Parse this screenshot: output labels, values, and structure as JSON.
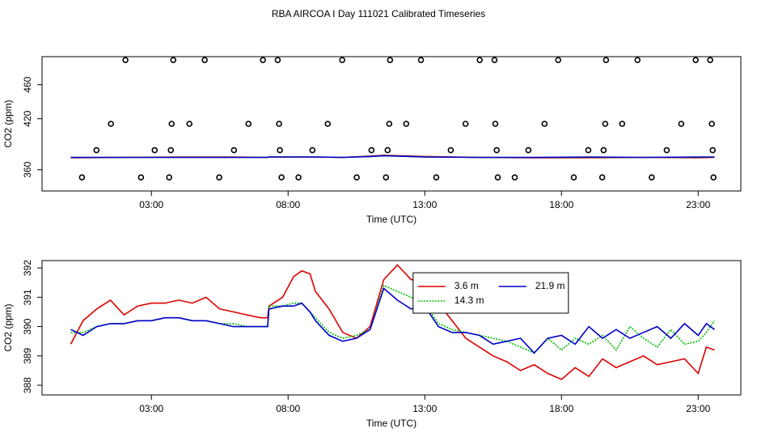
{
  "title": "RBA AIRCOA I  Day 111021  Calibrated Timeseries",
  "chart_data": [
    {
      "type": "line",
      "xlabel": "Time (UTC)",
      "ylabel": "CO2 (ppm)",
      "xlim": [
        -1,
        24.56
      ],
      "ylim": [
        335,
        493
      ],
      "xticks": [
        {
          "value": 3,
          "label": "03:00"
        },
        {
          "value": 8,
          "label": "08:00"
        },
        {
          "value": 13,
          "label": "13:00"
        },
        {
          "value": 18,
          "label": "18:00"
        },
        {
          "value": 23,
          "label": "23:00"
        }
      ],
      "yticks": [
        360,
        420,
        460
      ],
      "series": [
        {
          "style": "points",
          "color": "#000000",
          "x": [
            2.05,
            3.8,
            4.95,
            7.08,
            7.62,
            9.98,
            11.73,
            12.86,
            15.01,
            15.55,
            17.88,
            19.63,
            20.78,
            22.91,
            23.44,
            1.52,
            3.74,
            4.39,
            6.55,
            7.67,
            9.45,
            11.7,
            12.32,
            14.49,
            15.58,
            17.38,
            19.6,
            20.22,
            22.38,
            23.5,
            0.99,
            3.12,
            3.71,
            6.02,
            7.7,
            8.89,
            11.05,
            11.64,
            13.95,
            15.63,
            16.79,
            18.98,
            19.54,
            21.85,
            23.53,
            0.46,
            2.62,
            3.65,
            5.48,
            7.76,
            8.38,
            10.51,
            11.58,
            13.42,
            15.67,
            16.29,
            18.45,
            19.49,
            21.3,
            23.56
          ],
          "values": [
            489,
            489,
            489,
            489,
            489,
            489,
            489,
            489,
            489,
            489,
            489,
            489,
            489,
            489,
            489,
            414,
            414,
            414,
            414,
            414,
            414,
            414,
            414,
            414,
            414,
            414,
            414,
            414,
            414,
            414,
            383,
            383,
            383,
            383,
            383,
            383,
            383,
            383,
            383,
            383,
            383,
            383,
            383,
            383,
            383,
            351,
            351,
            351,
            351,
            351,
            351,
            351,
            351,
            351,
            351,
            351,
            351,
            351,
            351,
            351
          ]
        },
        {
          "style": "solid",
          "color": "#dd0000",
          "x": [
            0.05,
            2,
            4,
            6,
            7.25,
            7.3,
            9,
            10,
            11,
            11.5,
            12,
            13,
            15,
            17,
            19,
            21,
            23,
            23.6
          ],
          "values": [
            374,
            374.5,
            375,
            375,
            374.5,
            375,
            375,
            374.5,
            376,
            377,
            376.5,
            375.5,
            374.5,
            374,
            374,
            374.5,
            374,
            374.5
          ]
        },
        {
          "style": "dotted",
          "color": "#00bb00",
          "x": [
            0.05,
            2,
            4,
            6,
            7.25,
            7.3,
            9,
            10,
            11,
            11.5,
            12,
            13,
            15,
            17,
            19,
            21,
            23,
            23.6
          ],
          "values": [
            374.5,
            374.5,
            374.5,
            374.5,
            374.5,
            375,
            375,
            374.5,
            375.5,
            376.5,
            376,
            375,
            374.5,
            374.5,
            374.5,
            374.5,
            374.5,
            375
          ]
        },
        {
          "style": "solid",
          "color": "#0000cc",
          "x": [
            0.05,
            2,
            4,
            6,
            7.25,
            7.3,
            9,
            10,
            11,
            11.5,
            12,
            13,
            15,
            17,
            19,
            21,
            23,
            23.6
          ],
          "values": [
            374.5,
            374.5,
            374.5,
            374.5,
            374.5,
            375,
            375,
            374.5,
            375.5,
            376.5,
            376,
            375,
            374.5,
            374.5,
            375,
            374.5,
            375,
            375
          ]
        }
      ]
    },
    {
      "type": "line",
      "xlabel": "Time (UTC)",
      "ylabel": "CO2 (ppm)",
      "xlim": [
        -1,
        24.56
      ],
      "ylim": [
        387.67,
        392.25
      ],
      "xticks": [
        {
          "value": 3,
          "label": "03:00"
        },
        {
          "value": 8,
          "label": "08:00"
        },
        {
          "value": 13,
          "label": "13:00"
        },
        {
          "value": 18,
          "label": "18:00"
        },
        {
          "value": 23,
          "label": "23:00"
        }
      ],
      "yticks": [
        388,
        389,
        390,
        391,
        392
      ],
      "legend": "top",
      "series": [
        {
          "name": "3.6 m",
          "style": "solid",
          "color": "#dd0000",
          "x": [
            0.05,
            0.5,
            1,
            1.5,
            2,
            2.5,
            3,
            3.5,
            4,
            4.5,
            5,
            5.5,
            6,
            6.5,
            7,
            7.25,
            7.3,
            7.8,
            8.2,
            8.5,
            8.8,
            9,
            9.5,
            10,
            10.5,
            11,
            11.5,
            12,
            12.5,
            13,
            13.5,
            14,
            14.5,
            15,
            15.5,
            16,
            16.5,
            17,
            17.5,
            18,
            18.5,
            19,
            19.5,
            20,
            20.5,
            21,
            21.5,
            22,
            22.5,
            23,
            23.3,
            23.6
          ],
          "values": [
            389.4,
            390.2,
            390.6,
            390.9,
            390.4,
            390.7,
            390.8,
            390.8,
            390.9,
            390.8,
            391.0,
            390.6,
            390.5,
            390.4,
            390.3,
            390.3,
            390.7,
            391.0,
            391.7,
            391.9,
            391.8,
            391.2,
            390.6,
            389.8,
            389.6,
            390.0,
            391.6,
            392.1,
            391.6,
            391.6,
            390.8,
            390.2,
            389.6,
            389.3,
            389.0,
            388.8,
            388.5,
            388.7,
            388.4,
            388.2,
            388.6,
            388.3,
            388.9,
            388.6,
            388.8,
            389.0,
            388.7,
            388.8,
            388.9,
            388.4,
            389.3,
            389.2
          ]
        },
        {
          "name": "14.3 m",
          "style": "dotted",
          "color": "#00bb00",
          "x": [
            0.05,
            0.5,
            1,
            1.5,
            2,
            2.5,
            3,
            3.5,
            4,
            4.5,
            5,
            5.5,
            6,
            6.5,
            7,
            7.25,
            7.3,
            7.8,
            8.2,
            8.5,
            8.8,
            9,
            9.5,
            10,
            10.5,
            11,
            11.5,
            12,
            12.5,
            13,
            13.5,
            14,
            14.5,
            15,
            15.5,
            16,
            16.5,
            17,
            17.5,
            18,
            18.5,
            19,
            19.5,
            20,
            20.5,
            21,
            21.5,
            22,
            22.5,
            23,
            23.3,
            23.6
          ],
          "values": [
            389.8,
            389.8,
            390.0,
            390.1,
            390.1,
            390.2,
            390.2,
            390.3,
            390.3,
            390.2,
            390.2,
            390.1,
            390.1,
            390.0,
            390.0,
            390.0,
            390.7,
            390.7,
            390.8,
            390.8,
            390.5,
            390.3,
            389.8,
            389.6,
            389.7,
            389.9,
            391.4,
            391.2,
            391.0,
            390.8,
            390.1,
            389.9,
            389.8,
            389.7,
            389.6,
            389.5,
            389.3,
            389.1,
            389.6,
            389.2,
            389.6,
            389.4,
            389.7,
            389.2,
            390.0,
            389.6,
            389.3,
            389.9,
            389.4,
            389.5,
            389.8,
            390.2
          ]
        },
        {
          "name": "21.9 m",
          "style": "solid",
          "color": "#0000cc",
          "x": [
            0.05,
            0.5,
            1,
            1.5,
            2,
            2.5,
            3,
            3.5,
            4,
            4.5,
            5,
            5.5,
            6,
            6.5,
            7,
            7.25,
            7.3,
            7.8,
            8.2,
            8.5,
            8.8,
            9,
            9.5,
            10,
            10.5,
            11,
            11.5,
            12,
            12.5,
            13,
            13.5,
            14,
            14.5,
            15,
            15.5,
            16,
            16.5,
            17,
            17.5,
            18,
            18.5,
            19,
            19.5,
            20,
            20.5,
            21,
            21.5,
            22,
            22.5,
            23,
            23.3,
            23.6
          ],
          "values": [
            389.9,
            389.7,
            390.0,
            390.1,
            390.1,
            390.2,
            390.2,
            390.3,
            390.3,
            390.2,
            390.2,
            390.1,
            390.0,
            390.0,
            390.0,
            390.0,
            390.6,
            390.7,
            390.7,
            390.8,
            390.5,
            390.2,
            389.7,
            389.5,
            389.6,
            389.9,
            391.3,
            390.9,
            390.6,
            390.7,
            390.0,
            389.8,
            389.8,
            389.7,
            389.4,
            389.5,
            389.6,
            389.1,
            389.6,
            389.7,
            389.4,
            390.0,
            389.6,
            389.9,
            389.6,
            389.8,
            390.0,
            389.6,
            390.1,
            389.7,
            390.1,
            389.9
          ]
        }
      ]
    }
  ]
}
